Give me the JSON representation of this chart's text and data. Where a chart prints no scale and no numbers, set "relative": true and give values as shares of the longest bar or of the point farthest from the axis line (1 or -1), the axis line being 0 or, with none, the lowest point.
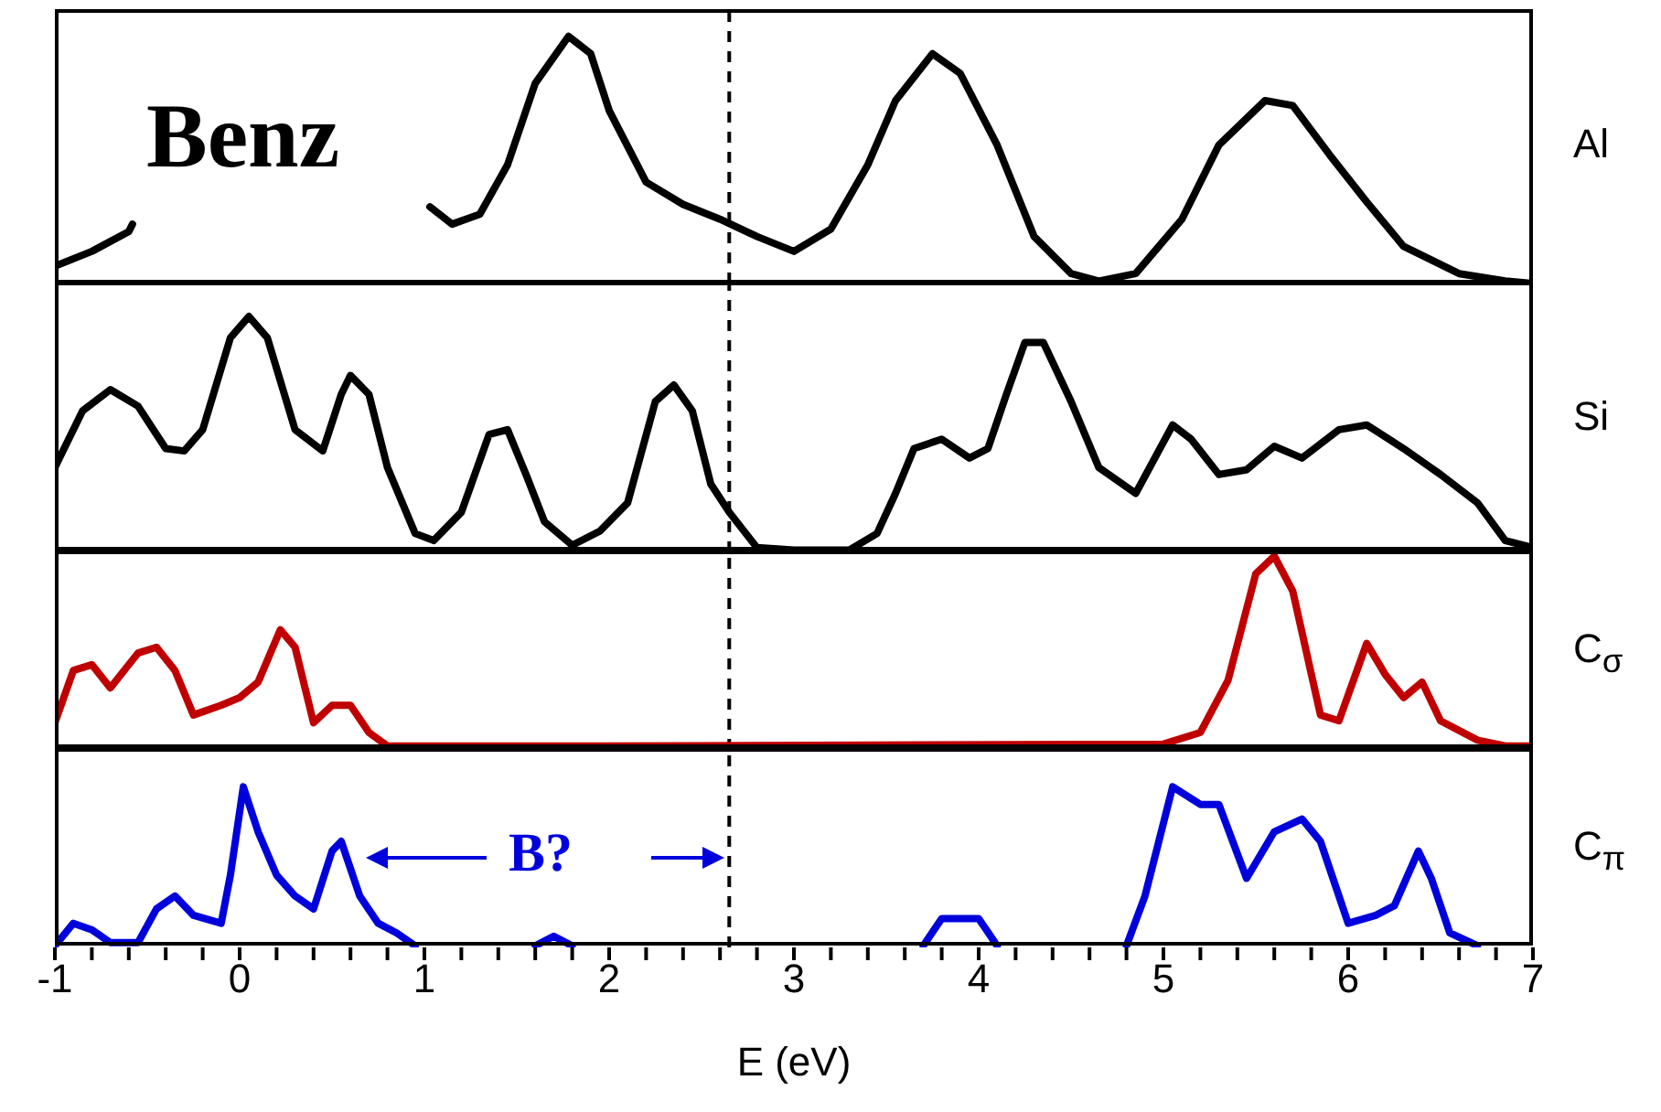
{
  "chart_data": [
    {
      "type": "line",
      "relative": true,
      "xlim": [
        -1,
        7
      ],
      "tick_labels": false,
      "annotations": [
        "Benz"
      ],
      "ref_lines": [
        {
          "axis": "x",
          "value": 2.65,
          "color": "#000000",
          "line_style": "dashed"
        }
      ],
      "series": [
        {
          "name": "Al",
          "color": "#000000",
          "x": [
            -1,
            -0.8,
            -0.6,
            -0.58,
            0.2,
            1.03,
            1.15,
            1.3,
            1.45,
            1.6,
            1.78,
            1.9,
            2.0,
            2.2,
            2.4,
            2.6,
            2.8,
            3.0,
            3.2,
            3.4,
            3.55,
            3.75,
            3.9,
            4.1,
            4.3,
            4.5,
            4.65,
            4.85,
            5.1,
            5.3,
            5.55,
            5.7,
            5.9,
            6.1,
            6.3,
            6.6,
            6.85,
            7
          ],
          "values": [
            0.07,
            0.13,
            0.21,
            0.24,
            null,
            0.31,
            0.24,
            0.28,
            0.48,
            0.81,
            1,
            0.93,
            0.7,
            0.41,
            0.32,
            0.26,
            0.19,
            0.13,
            0.22,
            0.48,
            0.74,
            0.93,
            0.85,
            0.56,
            0.19,
            0.04,
            0.01,
            0.04,
            0.26,
            0.56,
            0.74,
            0.72,
            0.52,
            0.33,
            0.15,
            0.04,
            0.01,
            0
          ]
        }
      ]
    },
    {
      "type": "line",
      "relative": true,
      "xlim": [
        -1,
        7
      ],
      "tick_labels": false,
      "ref_lines": [
        {
          "axis": "x",
          "value": 2.65,
          "color": "#000000",
          "line_style": "dashed"
        }
      ],
      "series": [
        {
          "name": "Si",
          "color": "#000000",
          "x": [
            -1,
            -0.85,
            -0.7,
            -0.55,
            -0.4,
            -0.3,
            -0.2,
            -0.05,
            0.05,
            0.15,
            0.3,
            0.45,
            0.55,
            0.6,
            0.7,
            0.8,
            0.95,
            1.05,
            1.2,
            1.35,
            1.45,
            1.55,
            1.65,
            1.8,
            1.95,
            2.1,
            2.25,
            2.35,
            2.45,
            2.55,
            2.65,
            2.8,
            3.0,
            3.3,
            3.45,
            3.55,
            3.65,
            3.8,
            3.95,
            4.05,
            4.15,
            4.25,
            4.35,
            4.5,
            4.65,
            4.85,
            5.05,
            5.15,
            5.3,
            5.45,
            5.6,
            5.75,
            5.95,
            6.1,
            6.3,
            6.5,
            6.7,
            6.85,
            7
          ],
          "values": [
            0.36,
            0.6,
            0.69,
            0.62,
            0.44,
            0.43,
            0.52,
            0.91,
            1,
            0.91,
            0.52,
            0.43,
            0.67,
            0.75,
            0.67,
            0.36,
            0.08,
            0.05,
            0.17,
            0.5,
            0.52,
            0.33,
            0.13,
            0.03,
            0.09,
            0.21,
            0.64,
            0.71,
            0.6,
            0.29,
            0.17,
            0.02,
            0.01,
            0.01,
            0.08,
            0.25,
            0.44,
            0.48,
            0.4,
            0.44,
            0.67,
            0.89,
            0.89,
            0.64,
            0.36,
            0.25,
            0.54,
            0.48,
            0.33,
            0.35,
            0.45,
            0.4,
            0.52,
            0.54,
            0.44,
            0.33,
            0.21,
            0.05,
            0.02
          ]
        }
      ]
    },
    {
      "type": "line",
      "relative": true,
      "xlim": [
        -1,
        7
      ],
      "tick_labels": false,
      "ref_lines": [
        {
          "axis": "x",
          "value": 2.65,
          "color": "#000000",
          "line_style": "dashed"
        }
      ],
      "series": [
        {
          "name": "C$_{σ}$",
          "color": "#c00000",
          "x": [
            -1,
            -0.9,
            -0.8,
            -0.7,
            -0.55,
            -0.45,
            -0.35,
            -0.25,
            -0.1,
            0.0,
            0.1,
            0.22,
            0.3,
            0.4,
            0.5,
            0.6,
            0.7,
            0.8,
            1.0,
            2.0,
            5.0,
            5.2,
            5.35,
            5.5,
            5.6,
            5.7,
            5.85,
            5.95,
            6.1,
            6.2,
            6.3,
            6.4,
            6.5,
            6.7,
            6.85,
            7
          ],
          "values": [
            0.14,
            0.41,
            0.44,
            0.32,
            0.5,
            0.53,
            0.41,
            0.18,
            0.23,
            0.27,
            0.35,
            0.62,
            0.53,
            0.14,
            0.23,
            0.23,
            0.09,
            0.02,
            0.02,
            0.02,
            0.03,
            0.09,
            0.36,
            0.91,
            1,
            0.82,
            0.18,
            0.15,
            0.55,
            0.39,
            0.27,
            0.35,
            0.15,
            0.05,
            0.02,
            0.02
          ]
        }
      ]
    },
    {
      "type": "line",
      "relative": true,
      "xlim": [
        -1,
        7
      ],
      "tick_labels": "x",
      "xlabel": "E (eV)",
      "annotations": [
        "B?"
      ],
      "xticks": [
        -1,
        {
          "value": -0.8,
          "label": null
        },
        {
          "value": -0.6,
          "label": null
        },
        {
          "value": -0.4,
          "label": null
        },
        {
          "value": -0.2,
          "label": null
        },
        0,
        {
          "value": 0.2,
          "label": null
        },
        {
          "value": 0.4,
          "label": null
        },
        {
          "value": 0.6,
          "label": null
        },
        {
          "value": 0.8,
          "label": null
        },
        1,
        {
          "value": 1.2,
          "label": null
        },
        {
          "value": 1.4,
          "label": null
        },
        {
          "value": 1.6,
          "label": null
        },
        {
          "value": 1.8,
          "label": null
        },
        2,
        {
          "value": 2.2,
          "label": null
        },
        {
          "value": 2.4,
          "label": null
        },
        {
          "value": 2.6,
          "label": null
        },
        {
          "value": 2.8,
          "label": null
        },
        3,
        {
          "value": 3.2,
          "label": null
        },
        {
          "value": 3.4,
          "label": null
        },
        {
          "value": 3.6,
          "label": null
        },
        {
          "value": 3.8,
          "label": null
        },
        4,
        {
          "value": 4.2,
          "label": null
        },
        {
          "value": 4.4,
          "label": null
        },
        {
          "value": 4.6,
          "label": null
        },
        {
          "value": 4.8,
          "label": null
        },
        5,
        {
          "value": 5.2,
          "label": null
        },
        {
          "value": 5.4,
          "label": null
        },
        {
          "value": 5.6,
          "label": null
        },
        {
          "value": 5.8,
          "label": null
        },
        6,
        {
          "value": 6.2,
          "label": null
        },
        {
          "value": 6.4,
          "label": null
        },
        {
          "value": 6.6,
          "label": null
        },
        {
          "value": 6.8,
          "label": null
        },
        7
      ],
      "ref_lines": [
        {
          "axis": "x",
          "value": 2.65,
          "color": "#000000",
          "line_style": "dashed"
        }
      ],
      "series": [
        {
          "name": "C$_{π}$",
          "color": "#0000dd",
          "x": [
            -1,
            -0.9,
            -0.8,
            -0.7,
            -0.55,
            -0.45,
            -0.35,
            -0.25,
            -0.1,
            -0.05,
            0.02,
            0.1,
            0.2,
            0.3,
            0.4,
            0.5,
            0.55,
            0.65,
            0.75,
            0.85,
            0.95,
            1.3,
            1.6,
            1.7,
            1.8,
            3.0,
            3.7,
            3.8,
            4.0,
            4.1,
            4.5,
            4.8,
            4.9,
            5.05,
            5.2,
            5.3,
            5.45,
            5.6,
            5.75,
            5.85,
            6.0,
            6.15,
            6.25,
            6.38,
            6.45,
            6.55,
            6.7
          ],
          "values": [
            0.01,
            0.15,
            0.11,
            0.03,
            0.03,
            0.24,
            0.32,
            0.2,
            0.15,
            0.45,
            1,
            0.72,
            0.45,
            0.32,
            0.24,
            0.6,
            0.66,
            0.32,
            0.15,
            0.09,
            0.01,
            null,
            0.01,
            0.07,
            0.01,
            null,
            0.01,
            0.18,
            0.18,
            0.01,
            null,
            0.01,
            0.32,
            1,
            0.89,
            0.89,
            0.43,
            0.72,
            0.8,
            0.66,
            0.15,
            0.2,
            0.26,
            0.6,
            0.43,
            0.09,
            0.01
          ]
        }
      ]
    }
  ]
}
